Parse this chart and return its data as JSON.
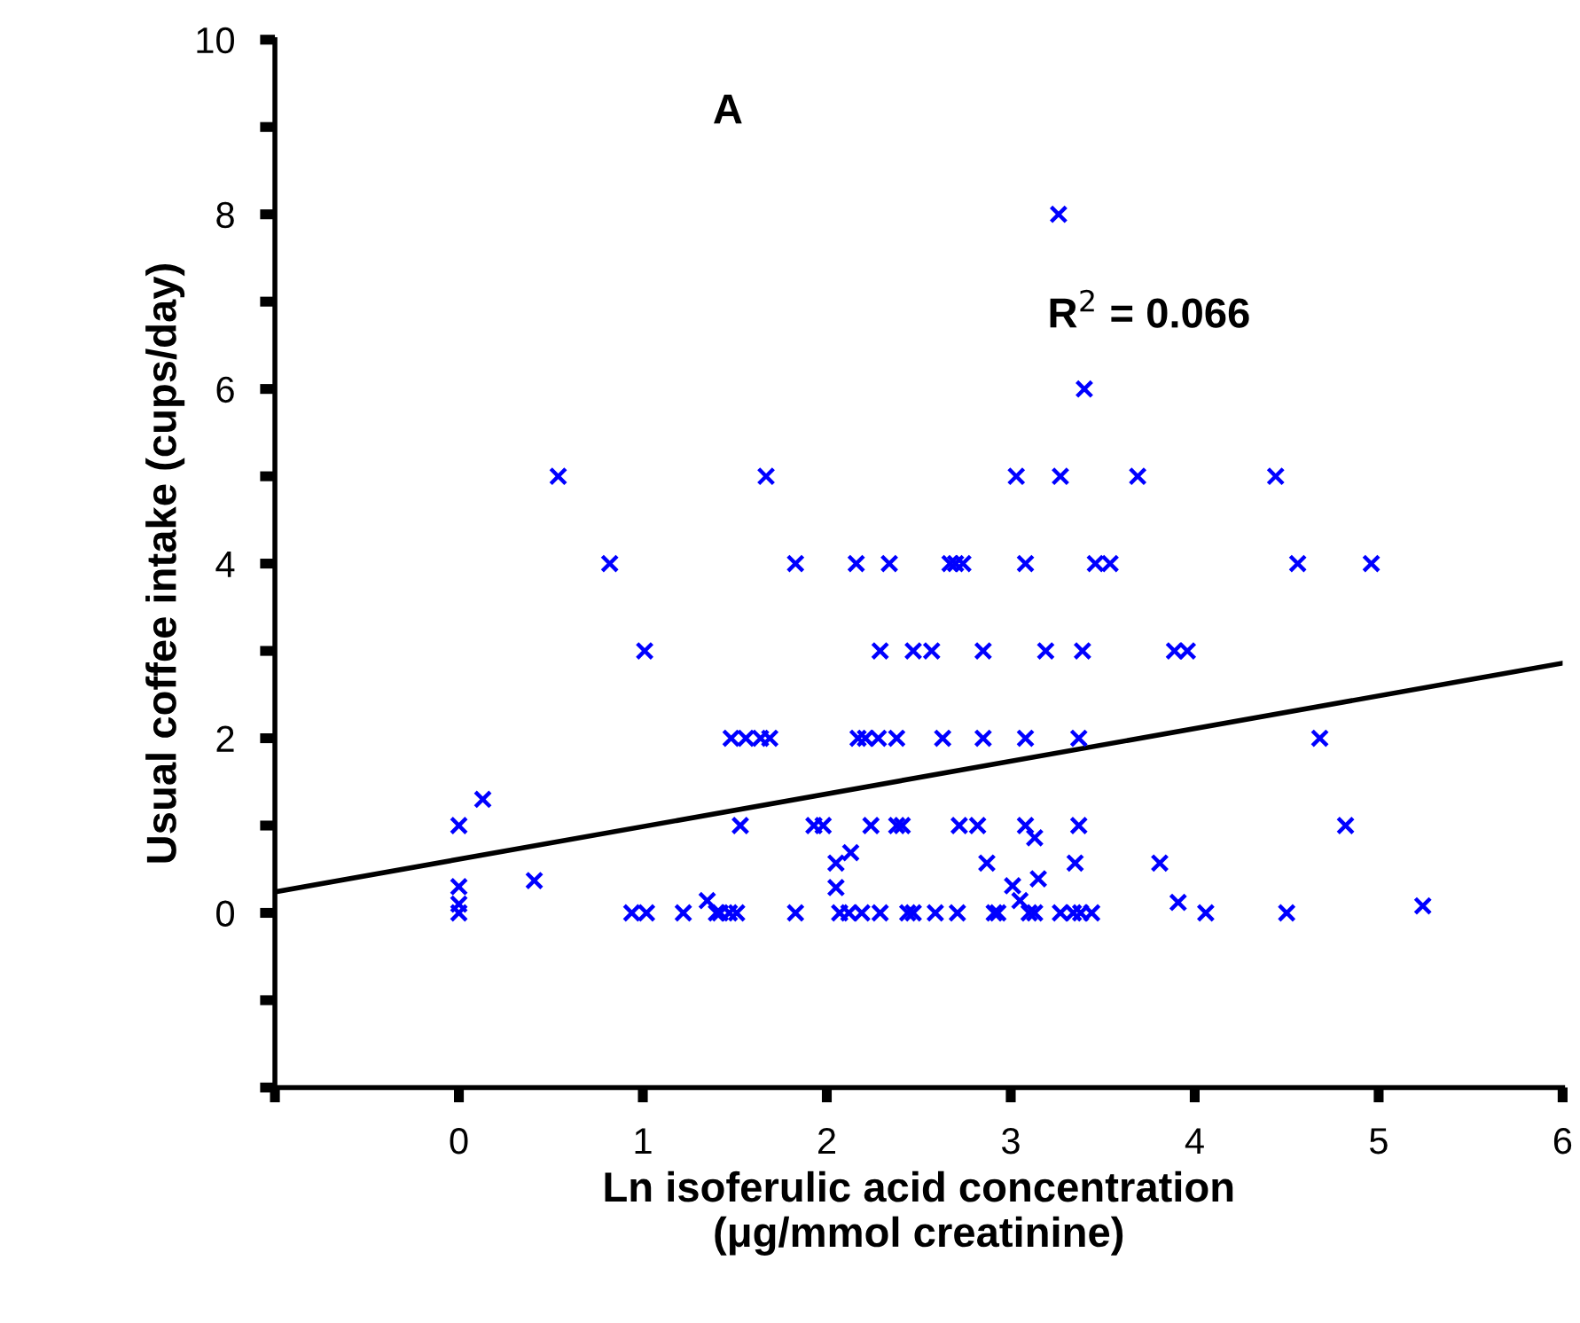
{
  "chart_data": {
    "type": "scatter",
    "xlabel": "Ln isoferulic acid concentration\n(μg/mmol creatinine)",
    "ylabel": "Usual coffee intake (cups/day)",
    "annotations": [
      "A",
      "R$^{2}$ = 0.066"
    ],
    "xlim": [
      -1,
      6
    ],
    "xticks": [
      {
        "value": -1,
        "label": null
      },
      0,
      1,
      2,
      3,
      4,
      5,
      6
    ],
    "ylim": [
      -2,
      10
    ],
    "yticks": [
      {
        "value": -2,
        "label": null
      },
      {
        "value": -1,
        "label": null
      },
      0,
      {
        "value": 1,
        "label": null
      },
      2,
      {
        "value": 3,
        "label": null
      },
      4,
      {
        "value": 5,
        "label": null
      },
      6,
      {
        "value": 7,
        "label": null
      },
      8,
      {
        "value": 9,
        "label": null
      },
      10
    ],
    "grid": false,
    "marker": "cross",
    "series": [
      {
        "color": "#0000ff",
        "x": [
          0.54,
          1.67,
          3.03,
          3.27,
          3.69,
          4.44,
          3.4,
          3.26,
          0.82,
          1.83,
          2.16,
          2.34,
          2.67,
          2.7,
          2.74,
          3.08,
          3.46,
          3.54,
          4.56,
          4.96,
          1.01,
          2.29,
          2.47,
          2.57,
          2.85,
          3.19,
          3.39,
          3.89,
          3.96,
          1.48,
          1.56,
          1.64,
          1.69,
          2.17,
          2.21,
          2.28,
          2.38,
          2.63,
          2.85,
          3.08,
          3.37,
          4.68,
          0,
          1.53,
          1.93,
          1.98,
          2.24,
          2.38,
          2.41,
          2.72,
          2.82,
          3.08,
          3.37,
          4.82,
          0.13,
          0,
          0,
          0,
          0.41,
          2.05,
          2.05,
          2.13,
          2.87,
          3.01,
          3.05,
          3.13,
          3.15,
          3.35,
          3.81,
          3.91,
          5.24,
          1.35,
          0.94,
          1.02,
          1.22,
          1.4,
          1.42,
          1.47,
          1.51,
          1.83,
          2.07,
          2.12,
          2.19,
          2.29,
          2.44,
          2.47,
          2.59,
          2.71,
          2.91,
          2.93,
          3.1,
          3.13,
          3.27,
          3.34,
          3.38,
          3.44,
          4.06,
          4.5
        ],
        "values": [
          5,
          5,
          5,
          5,
          5,
          5,
          6,
          8,
          4,
          4,
          4,
          4,
          4,
          4,
          4,
          4,
          4,
          4,
          4,
          4,
          3,
          3,
          3,
          3,
          3,
          3,
          3,
          3,
          3,
          2,
          2,
          2,
          2,
          2,
          2,
          2,
          2,
          2,
          2,
          2,
          2,
          2,
          1,
          1,
          1,
          1,
          1,
          1,
          1,
          1,
          1,
          1,
          1,
          1,
          1.3,
          0.3,
          0.1,
          0,
          0.37,
          0.29,
          0.57,
          0.69,
          0.57,
          0.31,
          0.14,
          0.86,
          0.39,
          0.57,
          0.57,
          0.12,
          0.08,
          0.14,
          0,
          0,
          0,
          0,
          0,
          0,
          0,
          0,
          0,
          0,
          0,
          0,
          0,
          0,
          0,
          0,
          0,
          0,
          0,
          0,
          0,
          0,
          0,
          0,
          0,
          0
        ]
      },
      {
        "type": "line",
        "color": "#000000",
        "x": [
          -1,
          6
        ],
        "values": [
          0.24,
          2.86
        ],
        "marker": "none",
        "line_style": "solid"
      }
    ]
  }
}
